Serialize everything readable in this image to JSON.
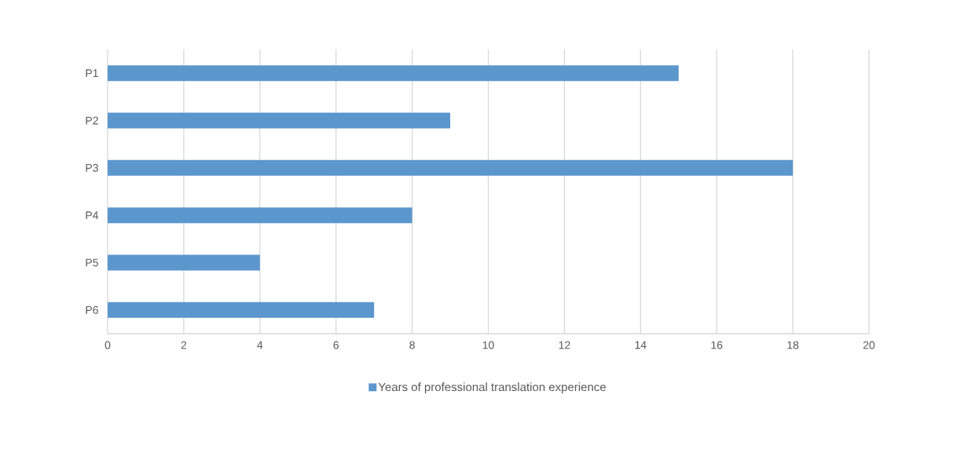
{
  "chart_data": {
    "type": "bar",
    "orientation": "horizontal",
    "categories": [
      "P1",
      "P2",
      "P3",
      "P4",
      "P5",
      "P6"
    ],
    "series": [
      {
        "name": "Years of professional translation experience",
        "color": "#5b96cd",
        "values": [
          15,
          9,
          18,
          8,
          4,
          7
        ]
      }
    ],
    "xlim": [
      0,
      20
    ],
    "xticks": [
      0,
      2,
      4,
      6,
      8,
      10,
      12,
      14,
      16,
      18,
      20
    ],
    "grid": "x",
    "legend": "bottom"
  }
}
